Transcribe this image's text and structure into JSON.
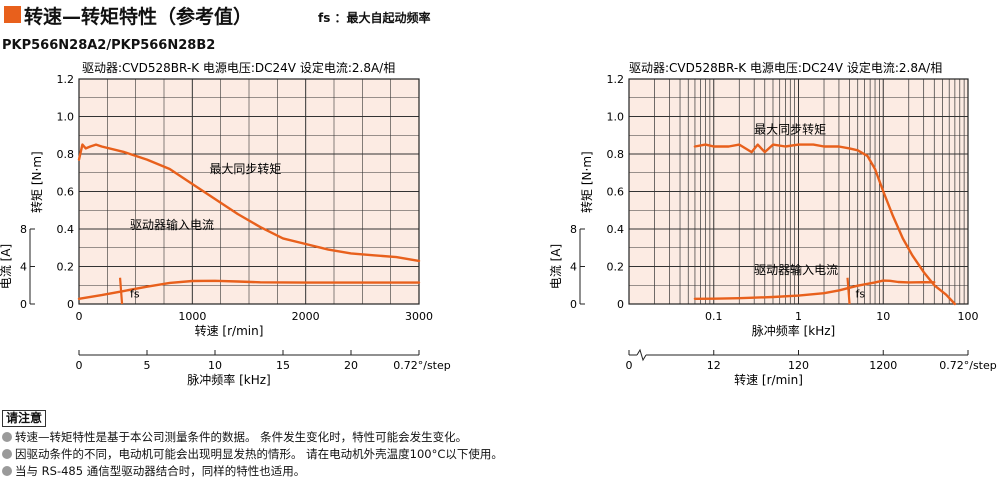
{
  "header": {
    "title": "转速—转矩特性（参考值）",
    "fs_note": "fs ：最大自起动频率",
    "model": "PKP566N28A2/PKP566N28B2"
  },
  "colors": {
    "curve": "#e8601c",
    "plot_bg": "#fcebe3",
    "grid": "#333333",
    "accent": "#e8601c"
  },
  "notes": {
    "title": "请注意",
    "items": [
      "转速—转矩特性是基于本公司测量条件的数据。 条件发生变化时，特性可能会发生变化。",
      "因驱动条件的不同，电动机可能会出现明显发热的情形。 请在电动机外壳温度100°C以下使用。",
      "当与 RS-485 通信型驱动器结合时，同样的特性也适用。"
    ]
  },
  "chart_data": [
    {
      "type": "line",
      "driver_label": "驱动器:CVD528BR-K 电源电压:DC24V 设定电流:2.8A/相",
      "xlabel": "转速 [r/min]",
      "xlim": [
        0,
        3000
      ],
      "x_ticks": [
        "0",
        "1000",
        "2000",
        "3000"
      ],
      "ylabel": "转矩 [N·m]",
      "ylim": [
        0,
        1.2
      ],
      "y_ticks": [
        "0",
        "0.2",
        "0.4",
        "0.6",
        "0.8",
        "1.0",
        "1.2"
      ],
      "y2label": "电流 [A]",
      "y2lim": [
        0,
        8
      ],
      "y2_ticks": [
        "0",
        "4",
        "8"
      ],
      "secondary_axis": {
        "label": "脉冲频率 [kHz]",
        "ticks": [
          "0",
          "5",
          "10",
          "15",
          "20"
        ],
        "unit": "0.72°/step"
      },
      "grid": true,
      "series": [
        {
          "name": "最大同步转矩",
          "axis": "torque",
          "x": [
            0,
            30,
            60,
            100,
            150,
            200,
            400,
            600,
            800,
            1000,
            1200,
            1400,
            1600,
            1800,
            2000,
            2200,
            2400,
            2600,
            2800,
            3000
          ],
          "values": [
            0.77,
            0.85,
            0.83,
            0.84,
            0.85,
            0.84,
            0.81,
            0.77,
            0.72,
            0.64,
            0.56,
            0.48,
            0.41,
            0.35,
            0.32,
            0.29,
            0.27,
            0.26,
            0.25,
            0.23
          ]
        },
        {
          "name": "驱动器输入电流",
          "axis": "current",
          "x": [
            0,
            200,
            400,
            600,
            800,
            1000,
            1200,
            1400,
            1600,
            2000,
            2500,
            3000
          ],
          "values": [
            0.55,
            0.95,
            1.4,
            1.85,
            2.25,
            2.45,
            2.48,
            2.4,
            2.32,
            2.28,
            2.28,
            2.28
          ]
        }
      ],
      "annotations": [
        {
          "text": "最大同步转矩",
          "x": 1150,
          "y": 0.7
        },
        {
          "text": "驱动器输入电流",
          "x": 450,
          "y": 0.4
        },
        {
          "text": "fs",
          "x": 450,
          "y": 0.035,
          "fs_x": 380,
          "fs_y": [
            0.0,
            0.14
          ]
        }
      ]
    },
    {
      "type": "line",
      "x_scale": "log",
      "driver_label": "驱动器:CVD528BR-K 电源电压:DC24V 设定电流:2.8A/相",
      "xlabel": "脉冲频率 [kHz]",
      "xlim": [
        0.01,
        100
      ],
      "x_ticks": [
        "0.1",
        "1",
        "10",
        "100"
      ],
      "ylabel": "转矩 [N·m]",
      "ylim": [
        0,
        1.2
      ],
      "y_ticks": [
        "0",
        "0.2",
        "0.4",
        "0.6",
        "0.8",
        "1.0",
        "1.2"
      ],
      "y2label": "电流 [A]",
      "y2lim": [
        0,
        8
      ],
      "y2_ticks": [
        "0",
        "4",
        "8"
      ],
      "secondary_axis": {
        "label": "转速 [r/min]",
        "ticks": [
          "0",
          "12",
          "120",
          "1200"
        ],
        "unit": "0.72°/step"
      },
      "grid": true,
      "series": [
        {
          "name": "最大同步转矩",
          "axis": "torque",
          "x": [
            0.06,
            0.08,
            0.1,
            0.15,
            0.2,
            0.28,
            0.33,
            0.4,
            0.5,
            0.7,
            1.0,
            1.5,
            2.0,
            3.0,
            4.0,
            5.0,
            6.5,
            8.0,
            10.0,
            13.0,
            17.0,
            22.0,
            30.0,
            40.0,
            55.0,
            70.0
          ],
          "values": [
            0.84,
            0.85,
            0.84,
            0.84,
            0.85,
            0.81,
            0.85,
            0.81,
            0.85,
            0.84,
            0.85,
            0.85,
            0.84,
            0.84,
            0.83,
            0.82,
            0.79,
            0.72,
            0.6,
            0.47,
            0.35,
            0.26,
            0.17,
            0.1,
            0.05,
            0.0
          ]
        },
        {
          "name": "驱动器输入电流",
          "axis": "current",
          "x": [
            0.06,
            0.1,
            0.2,
            0.5,
            1.0,
            2.0,
            3.0,
            5.0,
            8.0,
            10.0,
            12.0,
            15.0,
            20.0,
            30.0,
            40.0
          ],
          "values": [
            0.55,
            0.57,
            0.62,
            0.75,
            0.9,
            1.15,
            1.45,
            1.95,
            2.3,
            2.5,
            2.48,
            2.35,
            2.3,
            2.33,
            2.32
          ]
        }
      ],
      "annotations": [
        {
          "text": "最大同步转矩",
          "x": 0.3,
          "y": 0.91
        },
        {
          "text": "驱动器输入电流",
          "x": 0.3,
          "y": 0.16
        },
        {
          "text": "fs",
          "x": 4.7,
          "y": 0.035,
          "fs_x": 4.0,
          "fs_y": [
            0.0,
            0.14
          ]
        }
      ]
    }
  ]
}
